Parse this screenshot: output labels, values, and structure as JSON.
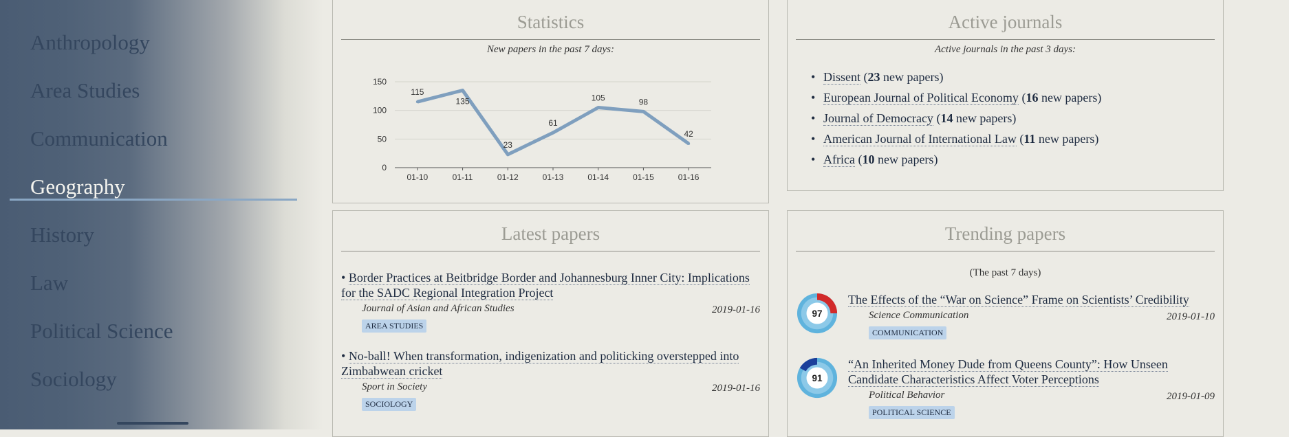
{
  "sidebar": {
    "items": [
      {
        "label": "Anthropology",
        "active": false
      },
      {
        "label": "Area Studies",
        "active": false
      },
      {
        "label": "Communication",
        "active": false
      },
      {
        "label": "Geography",
        "active": true
      },
      {
        "label": "History",
        "active": false
      },
      {
        "label": "Law",
        "active": false
      },
      {
        "label": "Political Science",
        "active": false
      },
      {
        "label": "Sociology",
        "active": false
      }
    ]
  },
  "statistics": {
    "title": "Statistics",
    "subtitle": "New papers in the past 7 days:"
  },
  "chart_data": {
    "type": "line",
    "categories": [
      "01-10",
      "01-11",
      "01-12",
      "01-13",
      "01-14",
      "01-15",
      "01-16"
    ],
    "series": [
      {
        "values": [
          115,
          135,
          23,
          61,
          105,
          98,
          42
        ]
      }
    ],
    "ylim": [
      0,
      150
    ],
    "yticks": [
      0,
      50,
      100,
      150
    ],
    "grid": true,
    "color": "#7f9fbe"
  },
  "active_journals": {
    "title": "Active journals",
    "subtitle": "Active journals in the past 3 days:",
    "items": [
      {
        "name": "Dissent",
        "count": "23",
        "suffix": "new papers"
      },
      {
        "name": "European Journal of Political Economy",
        "count": "16",
        "suffix": "new papers"
      },
      {
        "name": "Journal of Democracy",
        "count": "14",
        "suffix": "new papers"
      },
      {
        "name": "American Journal of International Law",
        "count": "11",
        "suffix": "new papers"
      },
      {
        "name": "Africa",
        "count": "10",
        "suffix": "new papers"
      }
    ]
  },
  "latest": {
    "title": "Latest papers",
    "papers": [
      {
        "title": "Border Practices at Beitbridge Border and Johannesburg Inner City: Implications for the SADC Regional Integration Project",
        "journal": "Journal of Asian and African Studies",
        "date": "2019-01-16",
        "tag": "AREA STUDIES"
      },
      {
        "title": "No-ball! When transformation, indigenization and politicking overstepped into Zimbabwean cricket",
        "journal": "Sport in Society",
        "date": "2019-01-16",
        "tag": "SOCIOLOGY"
      }
    ]
  },
  "trending": {
    "title": "Trending papers",
    "subtitle": "(The past 7 days)",
    "papers": [
      {
        "score": "97",
        "title": "The Effects of the “War on Science” Frame on Scientists’ Credibility",
        "journal": "Science Communication",
        "date": "2019-01-10",
        "tag": "COMMUNICATION"
      },
      {
        "score": "91",
        "title": "“An Inherited Money Dude from Queens County”: How Unseen Candidate Characteristics Affect Voter Perceptions",
        "journal": "Political Behavior",
        "date": "2019-01-09",
        "tag": "POLITICAL SCIENCE"
      }
    ]
  }
}
